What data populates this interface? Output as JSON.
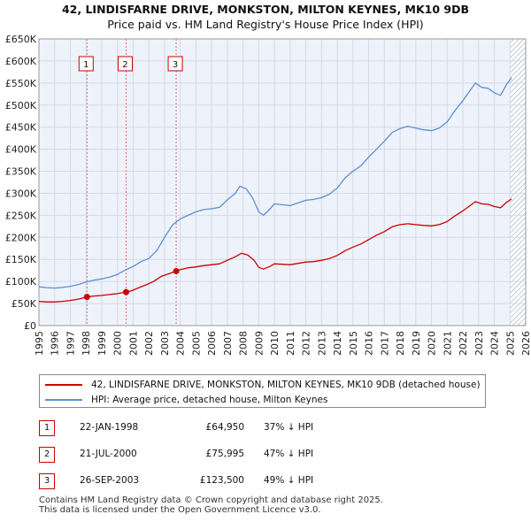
{
  "title": {
    "line1": "42, LINDISFARNE DRIVE, MONKSTON, MILTON KEYNES, MK10 9DB",
    "line2": "Price paid vs. HM Land Registry's House Price Index (HPI)"
  },
  "colors": {
    "price_paid": "#cc0000",
    "hpi": "#5b8fd4",
    "grid": "#dde3ee",
    "plot_bg": "#eef2fa",
    "marker_box": "#cc0000"
  },
  "legend": {
    "items": [
      {
        "label": "42, LINDISFARNE DRIVE, MONKSTON, MILTON KEYNES, MK10 9DB (detached house)",
        "color": "#cc0000"
      },
      {
        "label": "HPI: Average price, detached house, Milton Keynes",
        "color": "#5b8fd4"
      }
    ]
  },
  "transactions": [
    {
      "num": "1",
      "date": "22-JAN-1998",
      "price": "£64,950",
      "vs_hpi": "37% ↓ HPI"
    },
    {
      "num": "2",
      "date": "21-JUL-2000",
      "price": "£75,995",
      "vs_hpi": "47% ↓ HPI"
    },
    {
      "num": "3",
      "date": "26-SEP-2003",
      "price": "£123,500",
      "vs_hpi": "49% ↓ HPI"
    }
  ],
  "footer": {
    "line1": "Contains HM Land Registry data © Crown copyright and database right 2025.",
    "line2": "This data is licensed under the Open Government Licence v3.0."
  },
  "chart_data": {
    "type": "line",
    "title": "Price paid vs. HM Land Registry's House Price Index (HPI)",
    "xlabel": "",
    "ylabel": "",
    "xlim": [
      1995,
      2026
    ],
    "ylim": [
      0,
      650000
    ],
    "x_ticks": [
      1995,
      1996,
      1997,
      1998,
      1999,
      2000,
      2001,
      2002,
      2003,
      2004,
      2005,
      2006,
      2007,
      2008,
      2009,
      2010,
      2011,
      2012,
      2013,
      2014,
      2015,
      2016,
      2017,
      2018,
      2019,
      2020,
      2021,
      2022,
      2023,
      2024,
      2025,
      2026
    ],
    "y_ticks": [
      {
        "value": 0,
        "label": "£0"
      },
      {
        "value": 50000,
        "label": "£50K"
      },
      {
        "value": 100000,
        "label": "£100K"
      },
      {
        "value": 150000,
        "label": "£150K"
      },
      {
        "value": 200000,
        "label": "£200K"
      },
      {
        "value": 250000,
        "label": "£250K"
      },
      {
        "value": 300000,
        "label": "£300K"
      },
      {
        "value": 350000,
        "label": "£350K"
      },
      {
        "value": 400000,
        "label": "£400K"
      },
      {
        "value": 450000,
        "label": "£450K"
      },
      {
        "value": 500000,
        "label": "£500K"
      },
      {
        "value": 550000,
        "label": "£550K"
      },
      {
        "value": 600000,
        "label": "£600K"
      },
      {
        "value": 650000,
        "label": "£650K"
      }
    ],
    "grid": true,
    "hatched_region_from": 2025.0,
    "series": [
      {
        "name": "HPI: Average price, detached house, Milton Keynes",
        "color": "#5b8fd4",
        "points": [
          [
            1995.0,
            88000
          ],
          [
            1995.5,
            86000
          ],
          [
            1996.0,
            85000
          ],
          [
            1996.5,
            86500
          ],
          [
            1997.0,
            89000
          ],
          [
            1997.5,
            93000
          ],
          [
            1998.0,
            99000
          ],
          [
            1998.5,
            103000
          ],
          [
            1999.0,
            106000
          ],
          [
            1999.5,
            110000
          ],
          [
            2000.0,
            116000
          ],
          [
            2000.5,
            126000
          ],
          [
            2001.0,
            134000
          ],
          [
            2001.5,
            145000
          ],
          [
            2002.0,
            152000
          ],
          [
            2002.5,
            170000
          ],
          [
            2003.0,
            200000
          ],
          [
            2003.5,
            228000
          ],
          [
            2004.0,
            242000
          ],
          [
            2004.5,
            250000
          ],
          [
            2005.0,
            258000
          ],
          [
            2005.5,
            263000
          ],
          [
            2006.0,
            265000
          ],
          [
            2006.5,
            268000
          ],
          [
            2007.0,
            285000
          ],
          [
            2007.5,
            300000
          ],
          [
            2007.8,
            316000
          ],
          [
            2008.2,
            310000
          ],
          [
            2008.6,
            290000
          ],
          [
            2009.0,
            258000
          ],
          [
            2009.3,
            250000
          ],
          [
            2009.7,
            264000
          ],
          [
            2010.0,
            276000
          ],
          [
            2010.5,
            274000
          ],
          [
            2011.0,
            272000
          ],
          [
            2011.5,
            278000
          ],
          [
            2012.0,
            284000
          ],
          [
            2012.5,
            286000
          ],
          [
            2013.0,
            290000
          ],
          [
            2013.5,
            298000
          ],
          [
            2014.0,
            312000
          ],
          [
            2014.5,
            335000
          ],
          [
            2015.0,
            350000
          ],
          [
            2015.5,
            362000
          ],
          [
            2016.0,
            382000
          ],
          [
            2016.5,
            400000
          ],
          [
            2017.0,
            418000
          ],
          [
            2017.5,
            438000
          ],
          [
            2018.0,
            447000
          ],
          [
            2018.5,
            452000
          ],
          [
            2019.0,
            448000
          ],
          [
            2019.5,
            444000
          ],
          [
            2020.0,
            442000
          ],
          [
            2020.5,
            448000
          ],
          [
            2021.0,
            462000
          ],
          [
            2021.5,
            488000
          ],
          [
            2022.0,
            510000
          ],
          [
            2022.5,
            535000
          ],
          [
            2022.8,
            550000
          ],
          [
            2023.2,
            540000
          ],
          [
            2023.6,
            538000
          ],
          [
            2024.0,
            528000
          ],
          [
            2024.4,
            522000
          ],
          [
            2024.8,
            548000
          ],
          [
            2025.1,
            562000
          ]
        ]
      },
      {
        "name": "42, LINDISFARNE DRIVE, MONKSTON, MILTON KEYNES, MK10 9DB (detached house)",
        "color": "#cc0000",
        "points": [
          [
            1995.0,
            55000
          ],
          [
            1995.5,
            53500
          ],
          [
            1996.0,
            53500
          ],
          [
            1996.5,
            55000
          ],
          [
            1997.0,
            57000
          ],
          [
            1997.5,
            60000
          ],
          [
            1998.06,
            64950
          ],
          [
            1998.5,
            67000
          ],
          [
            1999.0,
            68500
          ],
          [
            1999.5,
            70500
          ],
          [
            2000.0,
            72500
          ],
          [
            2000.55,
            75995
          ],
          [
            2000.9,
            79000
          ],
          [
            2001.3,
            85000
          ],
          [
            2001.8,
            92000
          ],
          [
            2002.3,
            100000
          ],
          [
            2002.8,
            112000
          ],
          [
            2003.3,
            118000
          ],
          [
            2003.74,
            123500
          ],
          [
            2004.0,
            127000
          ],
          [
            2004.5,
            131000
          ],
          [
            2005.0,
            133000
          ],
          [
            2005.5,
            136000
          ],
          [
            2006.0,
            138000
          ],
          [
            2006.5,
            140000
          ],
          [
            2007.0,
            148000
          ],
          [
            2007.5,
            156000
          ],
          [
            2007.9,
            164000
          ],
          [
            2008.3,
            160000
          ],
          [
            2008.7,
            148000
          ],
          [
            2009.0,
            132000
          ],
          [
            2009.3,
            128000
          ],
          [
            2009.7,
            134000
          ],
          [
            2010.0,
            140000
          ],
          [
            2010.5,
            139000
          ],
          [
            2011.0,
            138000
          ],
          [
            2011.5,
            141000
          ],
          [
            2012.0,
            144000
          ],
          [
            2012.5,
            145000
          ],
          [
            2013.0,
            148000
          ],
          [
            2013.5,
            152000
          ],
          [
            2014.0,
            159000
          ],
          [
            2014.5,
            170000
          ],
          [
            2015.0,
            178000
          ],
          [
            2015.5,
            185000
          ],
          [
            2016.0,
            195000
          ],
          [
            2016.5,
            205000
          ],
          [
            2017.0,
            213000
          ],
          [
            2017.5,
            224000
          ],
          [
            2018.0,
            229000
          ],
          [
            2018.5,
            231000
          ],
          [
            2019.0,
            229000
          ],
          [
            2019.5,
            227000
          ],
          [
            2020.0,
            226000
          ],
          [
            2020.5,
            229000
          ],
          [
            2021.0,
            236000
          ],
          [
            2021.5,
            249000
          ],
          [
            2022.0,
            260000
          ],
          [
            2022.5,
            273000
          ],
          [
            2022.8,
            281000
          ],
          [
            2023.2,
            276000
          ],
          [
            2023.6,
            275000
          ],
          [
            2024.0,
            270000
          ],
          [
            2024.4,
            267000
          ],
          [
            2024.8,
            280000
          ],
          [
            2025.1,
            287000
          ]
        ]
      }
    ],
    "sale_markers": [
      {
        "num": "1",
        "x": 1998.06,
        "y": 64950
      },
      {
        "num": "2",
        "x": 2000.55,
        "y": 75995
      },
      {
        "num": "3",
        "x": 2003.74,
        "y": 123500
      }
    ]
  }
}
